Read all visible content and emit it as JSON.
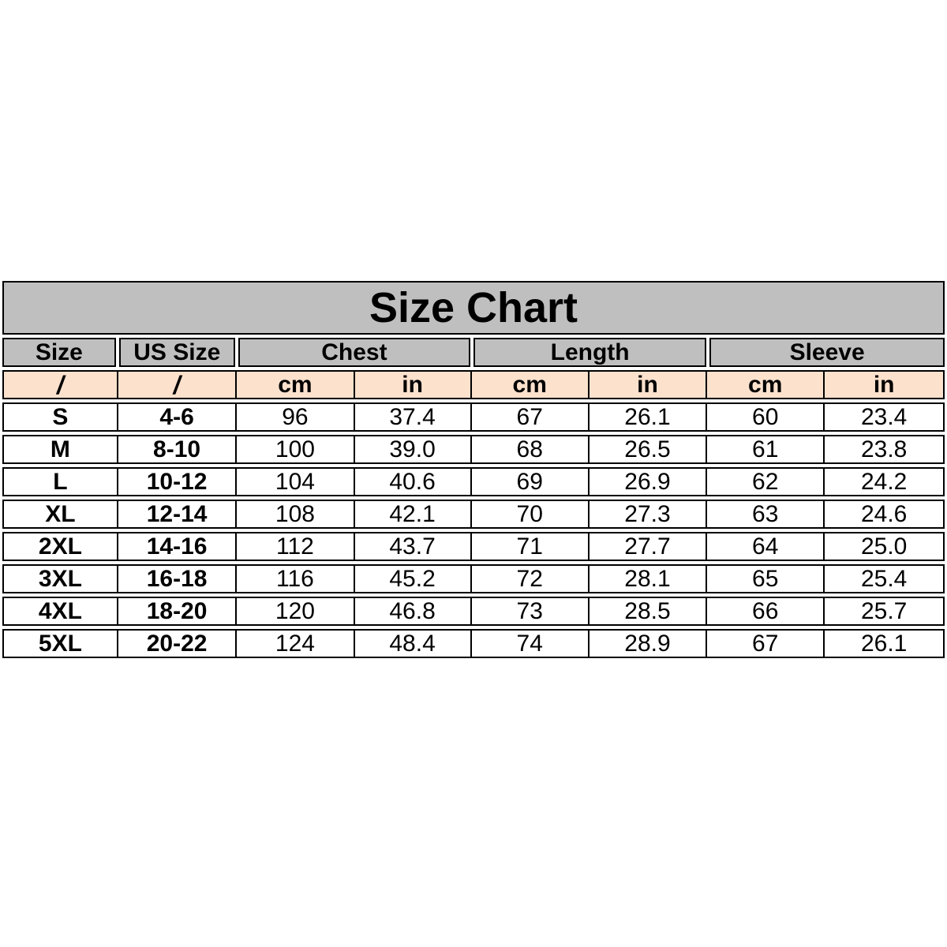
{
  "title": "Size Chart",
  "table": {
    "header": [
      {
        "label": "Size",
        "span": 1
      },
      {
        "label": "US Size",
        "span": 1
      },
      {
        "label": "Chest",
        "span": 2
      },
      {
        "label": "Length",
        "span": 2
      },
      {
        "label": "Sleeve",
        "span": 2
      }
    ],
    "units_row": [
      "/",
      "/",
      "cm",
      "in",
      "cm",
      "in",
      "cm",
      "in"
    ],
    "column_keys": [
      "size",
      "us-size",
      "chest-cm",
      "chest-in",
      "length-cm",
      "length-in",
      "sleeve-cm",
      "sleeve-in"
    ],
    "rows": [
      [
        "S",
        "4-6",
        "96",
        "37.4",
        "67",
        "26.1",
        "60",
        "23.4"
      ],
      [
        "M",
        "8-10",
        "100",
        "39.0",
        "68",
        "26.5",
        "61",
        "23.8"
      ],
      [
        "L",
        "10-12",
        "104",
        "40.6",
        "69",
        "26.9",
        "62",
        "24.2"
      ],
      [
        "XL",
        "12-14",
        "108",
        "42.1",
        "70",
        "27.3",
        "63",
        "24.6"
      ],
      [
        "2XL",
        "14-16",
        "112",
        "43.7",
        "71",
        "27.7",
        "64",
        "25.0"
      ],
      [
        "3XL",
        "16-18",
        "116",
        "45.2",
        "72",
        "28.1",
        "65",
        "25.4"
      ],
      [
        "4XL",
        "18-20",
        "120",
        "46.8",
        "73",
        "28.5",
        "66",
        "25.7"
      ],
      [
        "5XL",
        "20-22",
        "124",
        "48.4",
        "74",
        "28.9",
        "67",
        "26.1"
      ]
    ]
  },
  "chart_data": {
    "type": "table",
    "title": "Size Chart",
    "columns": [
      "Size",
      "US Size",
      "Chest cm",
      "Chest in",
      "Length cm",
      "Length in",
      "Sleeve cm",
      "Sleeve in"
    ],
    "rows": [
      [
        "S",
        "4-6",
        96,
        37.4,
        67,
        26.1,
        60,
        23.4
      ],
      [
        "M",
        "8-10",
        100,
        39.0,
        68,
        26.5,
        61,
        23.8
      ],
      [
        "L",
        "10-12",
        104,
        40.6,
        69,
        26.9,
        62,
        24.2
      ],
      [
        "XL",
        "12-14",
        108,
        42.1,
        70,
        27.3,
        63,
        24.6
      ],
      [
        "2XL",
        "14-16",
        112,
        43.7,
        71,
        27.7,
        64,
        25.0
      ],
      [
        "3XL",
        "16-18",
        116,
        45.2,
        72,
        28.1,
        65,
        25.4
      ],
      [
        "4XL",
        "18-20",
        120,
        46.8,
        73,
        28.5,
        66,
        25.7
      ],
      [
        "5XL",
        "20-22",
        124,
        48.4,
        74,
        28.9,
        67,
        26.1
      ]
    ]
  },
  "colors": {
    "header_bg": "#bfbfbf",
    "units_bg": "#fce1cd",
    "border": "#000000",
    "text": "#000000",
    "page_bg": "#ffffff"
  }
}
